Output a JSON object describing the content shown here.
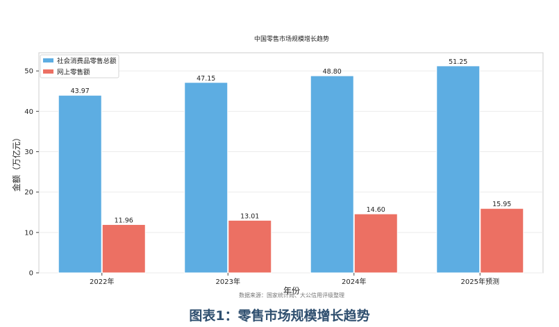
{
  "chart_data": {
    "type": "bar",
    "title": "中国零售市场规模增长趋势",
    "xlabel": "年份",
    "ylabel": "金额（万亿元）",
    "categories": [
      "2022年",
      "2023年",
      "2024年",
      "2025年预测"
    ],
    "series": [
      {
        "name": "社会消费品零售总额",
        "values": [
          43.97,
          47.15,
          48.8,
          51.25
        ],
        "labels": [
          "43.97",
          "47.15",
          "48.80",
          "51.25"
        ],
        "color": "#5dade2"
      },
      {
        "name": "网上零售额",
        "values": [
          11.96,
          13.01,
          14.6,
          15.95
        ],
        "labels": [
          "11.96",
          "13.01",
          "14.60",
          "15.95"
        ],
        "color": "#ec7063"
      }
    ],
    "ylim": [
      0,
      54.5
    ],
    "yticks": [
      0,
      10,
      20,
      30,
      40,
      50
    ],
    "grid": true,
    "legend_position": "top-left"
  },
  "source_note": "数据来源：国家统计局、大公信用评级整理",
  "caption": "图表1：零售市场规模增长趋势"
}
